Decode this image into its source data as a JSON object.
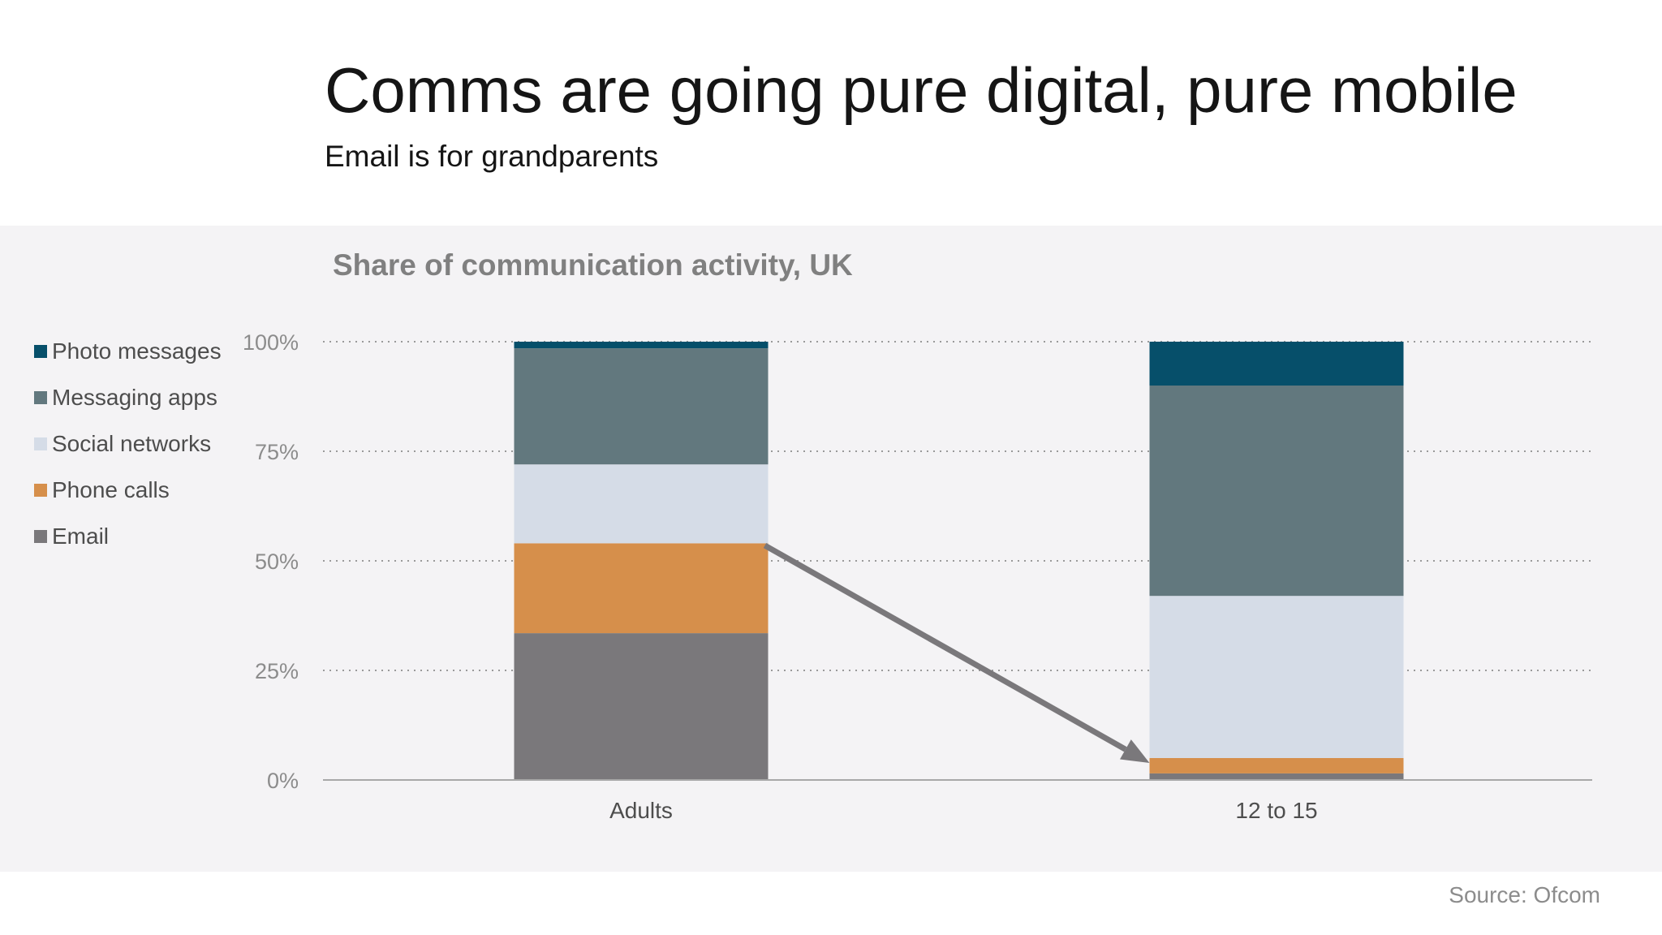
{
  "header": {
    "title": "Comms are going pure digital, pure mobile",
    "subtitle": "Email is for grandparents"
  },
  "source": "Source: Ofcom",
  "colors": {
    "Photo messages": "#064f6a",
    "Messaging apps": "#62787e",
    "Social networks": "#d5dce7",
    "Phone calls": "#d68f4b",
    "Email": "#7a787b",
    "arrow": "#7a787b",
    "panel_background": "#f4f3f5"
  },
  "chart_data": {
    "type": "bar",
    "stacked": true,
    "title": "Share of communication activity, UK",
    "xlabel": "",
    "ylabel": "",
    "categories": [
      "Adults",
      "12 to 15"
    ],
    "ylim": [
      0,
      100
    ],
    "y_ticks": [
      "0%",
      "25%",
      "50%",
      "75%",
      "100%"
    ],
    "grid": "horizontal dotted",
    "legend_position": "left",
    "legend": [
      "Photo messages",
      "Messaging apps",
      "Social networks",
      "Phone calls",
      "Email"
    ],
    "series": [
      {
        "name": "Email",
        "values": [
          33.5,
          1.5
        ]
      },
      {
        "name": "Phone calls",
        "values": [
          20.5,
          3.5
        ]
      },
      {
        "name": "Social networks",
        "values": [
          18,
          37
        ]
      },
      {
        "name": "Messaging apps",
        "values": [
          26.5,
          48
        ]
      },
      {
        "name": "Photo messages",
        "values": [
          1.5,
          10
        ]
      }
    ],
    "annotations": [
      {
        "type": "arrow",
        "from": {
          "category": "Adults",
          "value": 53.5
        },
        "to": {
          "category": "12 to 15",
          "value": 5
        }
      }
    ]
  }
}
